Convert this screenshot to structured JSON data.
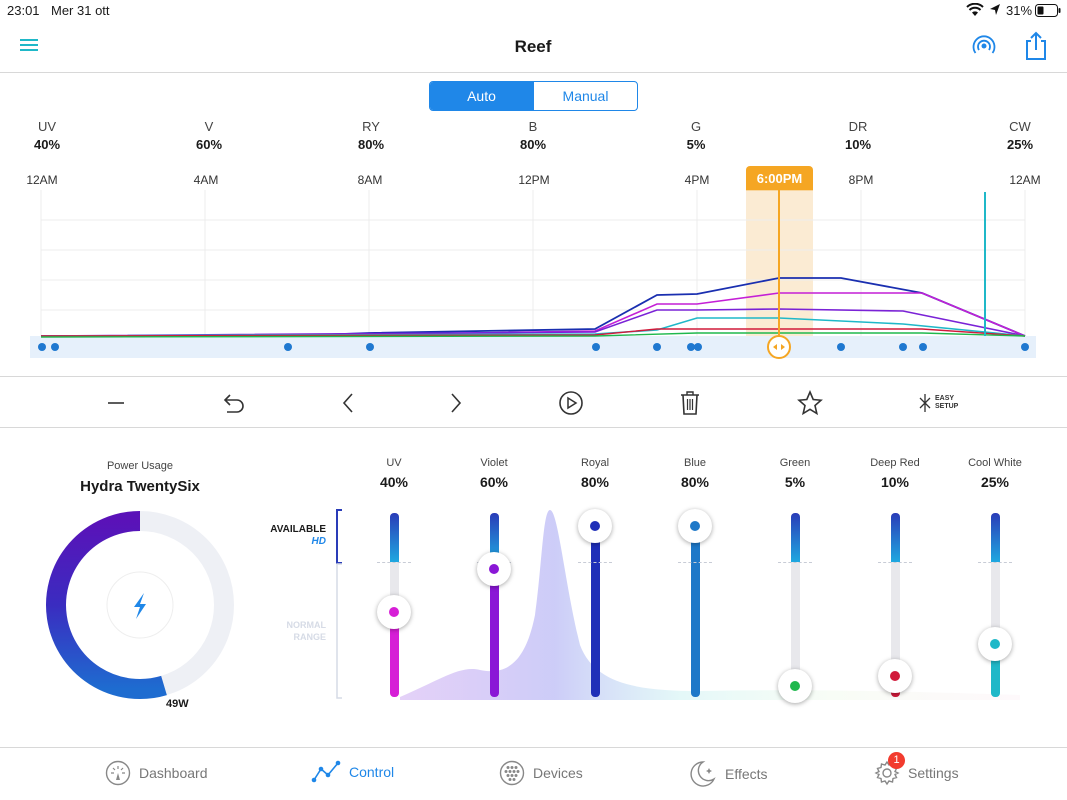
{
  "status": {
    "time": "23:01",
    "date": "Mer 31 ott",
    "battery": "31%"
  },
  "nav": {
    "title": "Reef"
  },
  "mode": {
    "auto_label": "Auto",
    "manual_label": "Manual",
    "selected": "Auto"
  },
  "channels": [
    {
      "short": "UV",
      "value": "40%"
    },
    {
      "short": "V",
      "value": "60%"
    },
    {
      "short": "RY",
      "value": "80%"
    },
    {
      "short": "B",
      "value": "80%"
    },
    {
      "short": "G",
      "value": "5%"
    },
    {
      "short": "DR",
      "value": "10%"
    },
    {
      "short": "CW",
      "value": "25%"
    }
  ],
  "timeline": {
    "labels": [
      "12AM",
      "4AM",
      "8AM",
      "12PM",
      "4PM",
      "8PM",
      "12AM"
    ],
    "current_time": "6:00PM"
  },
  "power": {
    "label": "Power Usage",
    "device": "Hydra TwentySix",
    "watts": "49W"
  },
  "hd": {
    "available": "AVAILABLE",
    "hd": "HD",
    "normal": "NORMAL",
    "range": "RANGE"
  },
  "sliders": [
    {
      "name": "UV",
      "value": "40%",
      "level": 0.4,
      "color": "#d61fd6"
    },
    {
      "name": "Violet",
      "value": "60%",
      "level": 0.6,
      "color": "#8a17d6"
    },
    {
      "name": "Royal",
      "value": "80%",
      "level": 0.8,
      "color": "#1f2fb8"
    },
    {
      "name": "Blue",
      "value": "80%",
      "level": 0.8,
      "color": "#1e78c8"
    },
    {
      "name": "Green",
      "value": "5%",
      "level": 0.05,
      "color": "#1fb84d"
    },
    {
      "name": "Deep Red",
      "value": "10%",
      "level": 0.1,
      "color": "#d11a3a"
    },
    {
      "name": "Cool White",
      "value": "25%",
      "level": 0.25,
      "color": "#1fb8c8"
    }
  ],
  "tabs": [
    {
      "label": "Dashboard"
    },
    {
      "label": "Control"
    },
    {
      "label": "Devices"
    },
    {
      "label": "Effects"
    },
    {
      "label": "Settings",
      "badge": "1"
    }
  ],
  "toolbar": {
    "easy_setup_line1": "EASY",
    "easy_setup_line2": "SETUP"
  },
  "colors": {
    "accent": "#1f87e8",
    "time_marker": "#f5a623",
    "teal": "#1fb8c8"
  }
}
